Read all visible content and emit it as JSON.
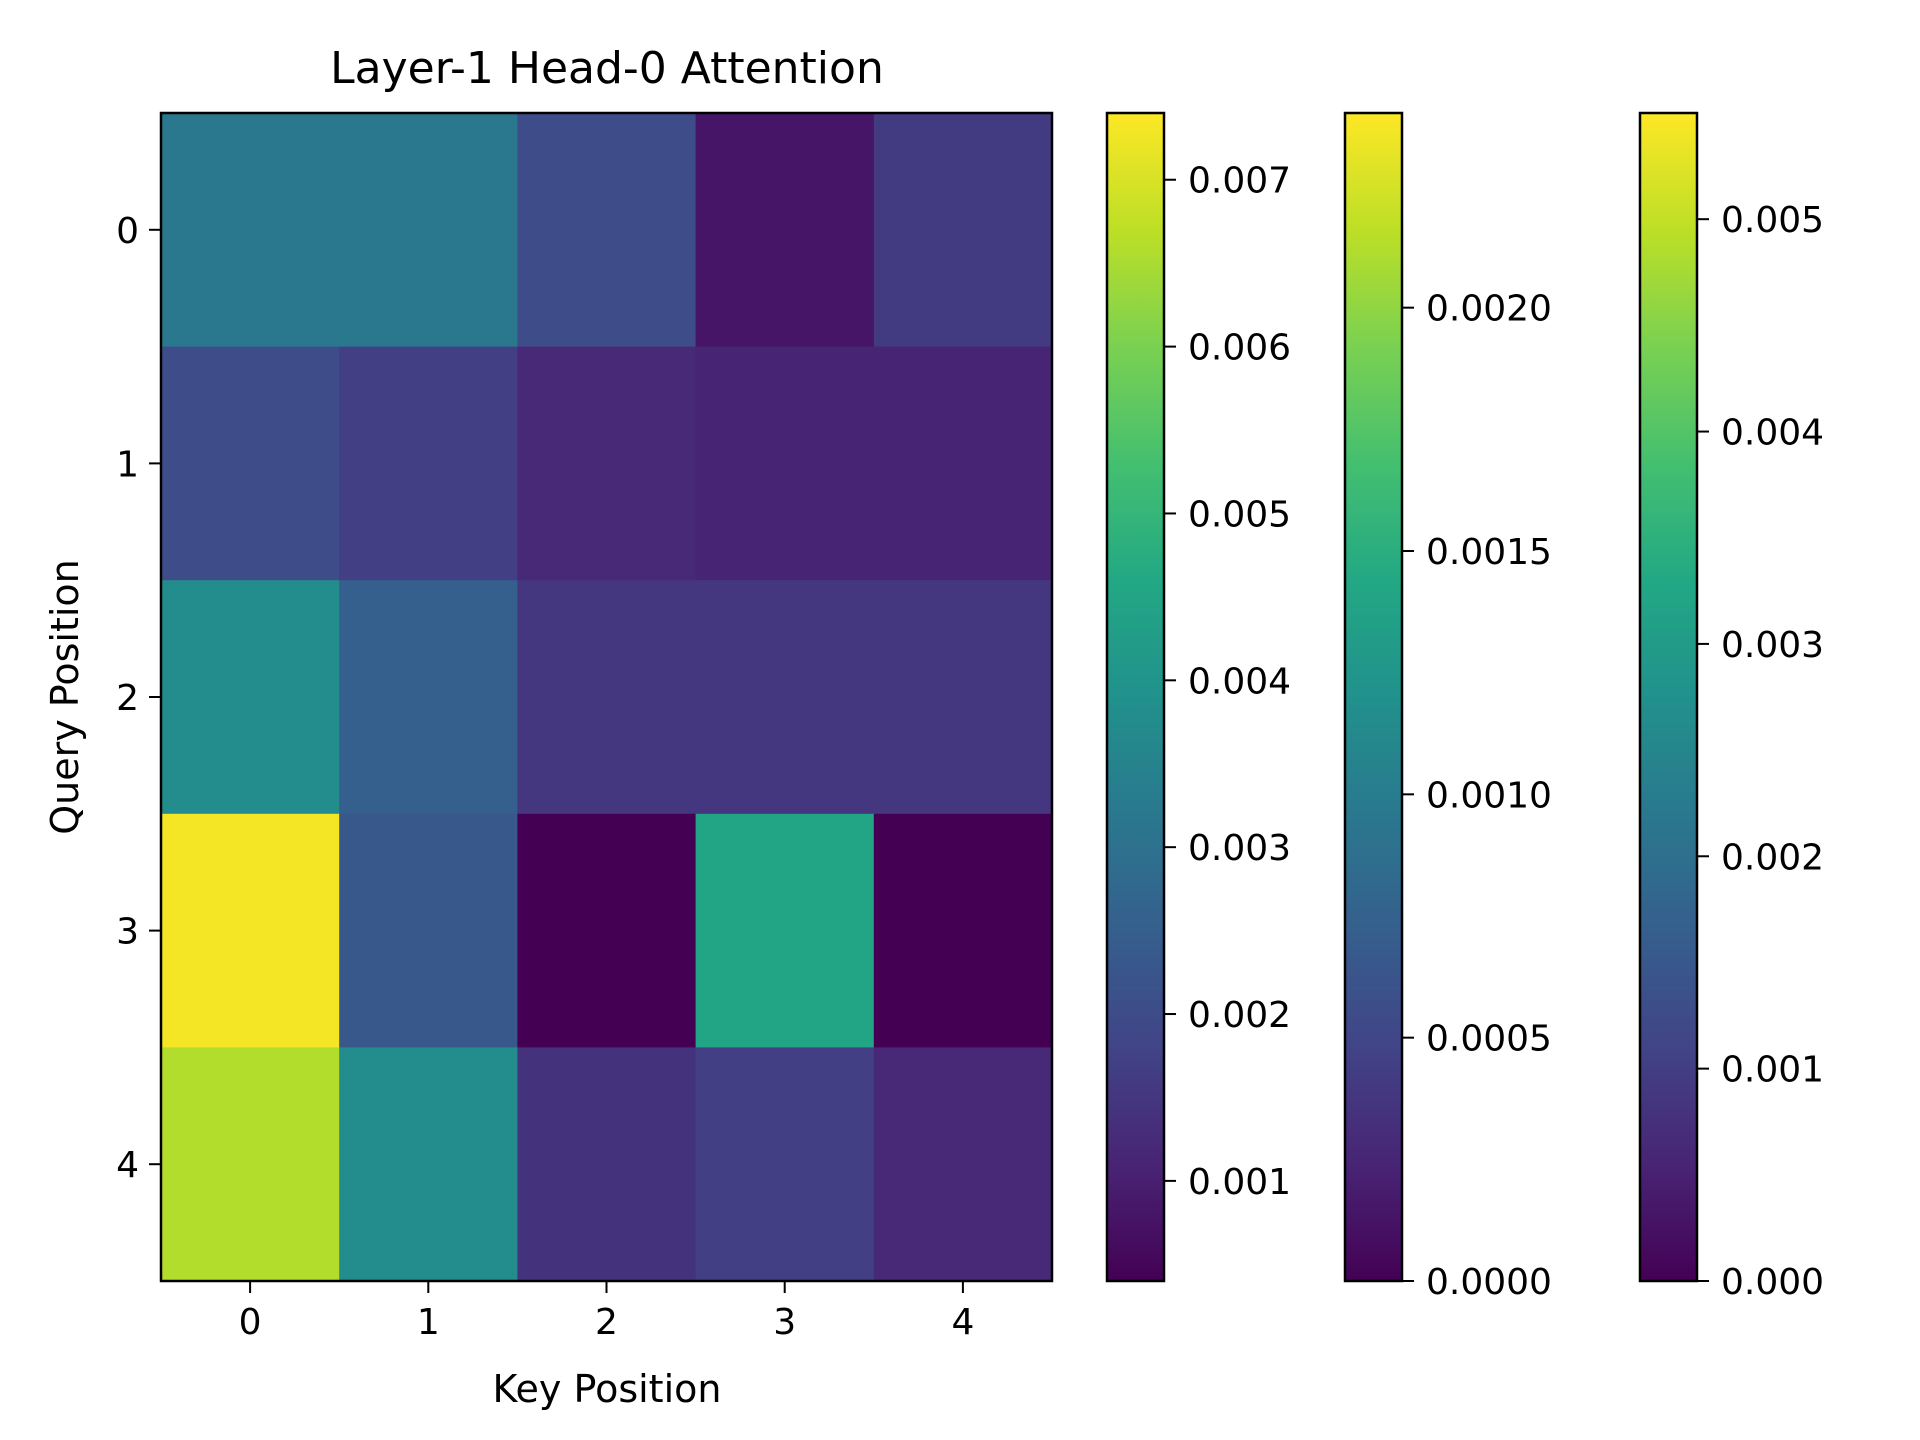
{
  "chart_data": {
    "type": "heatmap",
    "title": "Layer-1 Head-0 Attention",
    "xlabel": "Key Position",
    "ylabel": "Query Position",
    "x_categories": [
      "0",
      "1",
      "2",
      "3",
      "4"
    ],
    "y_categories": [
      "0",
      "1",
      "2",
      "3",
      "4"
    ],
    "values": [
      [
        0.0032,
        0.0032,
        0.002,
        0.0008,
        0.0016
      ],
      [
        0.002,
        0.0017,
        0.0012,
        0.0011,
        0.0011
      ],
      [
        0.0038,
        0.0025,
        0.0015,
        0.0015,
        0.0015
      ],
      [
        0.0073,
        0.0023,
        0.0004,
        0.0045,
        0.0004
      ],
      [
        0.0066,
        0.0038,
        0.0014,
        0.0017,
        0.0012
      ]
    ],
    "colormap": "viridis",
    "grid": false,
    "colorbars": [
      {
        "min": 0.0004,
        "max": 0.0074,
        "ticks": [
          "0.001",
          "0.002",
          "0.003",
          "0.004",
          "0.005",
          "0.006",
          "0.007"
        ]
      },
      {
        "min": 0.0,
        "max": 0.0024,
        "ticks": [
          "0.0000",
          "0.0005",
          "0.0010",
          "0.0015",
          "0.0020"
        ]
      },
      {
        "min": 0.0,
        "max": 0.0055,
        "ticks": [
          "0.000",
          "0.001",
          "0.002",
          "0.003",
          "0.004",
          "0.005"
        ]
      }
    ]
  }
}
